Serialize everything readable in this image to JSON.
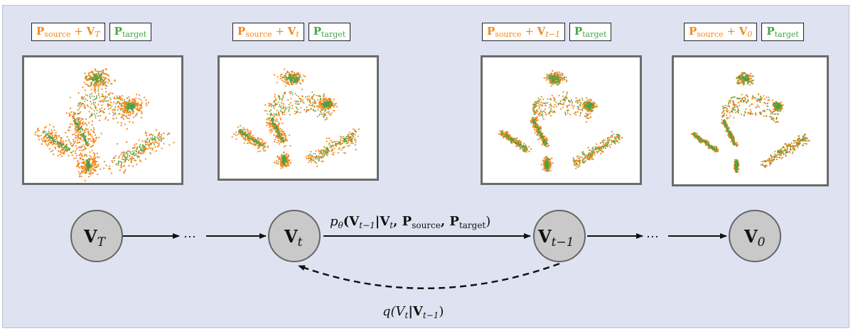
{
  "panels": [
    {
      "source_label": "P",
      "source_sub": "source",
      "plus": " + ",
      "v_label": "V",
      "v_sub": "T",
      "target_label": "P",
      "target_sub": "target",
      "noise": 1.0
    },
    {
      "source_label": "P",
      "source_sub": "source",
      "plus": " + ",
      "v_label": "V",
      "v_sub": "t",
      "target_label": "P",
      "target_sub": "target",
      "noise": 0.55
    },
    {
      "source_label": "P",
      "source_sub": "source",
      "plus": " + ",
      "v_label": "V",
      "v_sub": "t−1",
      "target_label": "P",
      "target_sub": "target",
      "noise": 0.3
    },
    {
      "source_label": "P",
      "source_sub": "source",
      "plus": " + ",
      "v_label": "V",
      "v_sub": "0",
      "target_label": "P",
      "target_sub": "target",
      "noise": 0.12
    }
  ],
  "chain": {
    "nodes": [
      {
        "main": "V",
        "sub": "T"
      },
      {
        "main": "V",
        "sub": "t"
      },
      {
        "main": "V",
        "sub": "t−1"
      },
      {
        "main": "V",
        "sub": "0"
      }
    ],
    "ellipsis": "⋯",
    "reverse_eq": "p",
    "reverse_eq_sub": "θ",
    "reverse_eq_body": "(V",
    "reverse_eq_body_sub": "t−1",
    "reverse_eq_rest": "|V",
    "reverse_eq_rest_sub": "t",
    "reverse_eq_p1": ", P",
    "reverse_eq_p1_sub": "source",
    "reverse_eq_p2": ", P",
    "reverse_eq_p2_sub": "target",
    "reverse_eq_close": ")",
    "forward_eq": "q(V",
    "forward_eq_sub": "t",
    "forward_eq_mid": "|V",
    "forward_eq_mid_sub": "t−1",
    "forward_eq_close": ")"
  },
  "colors": {
    "source": "#f2891f",
    "target": "#45a547",
    "panel_bg": "#dfe3f1",
    "node_fill": "#c9c9c9"
  }
}
